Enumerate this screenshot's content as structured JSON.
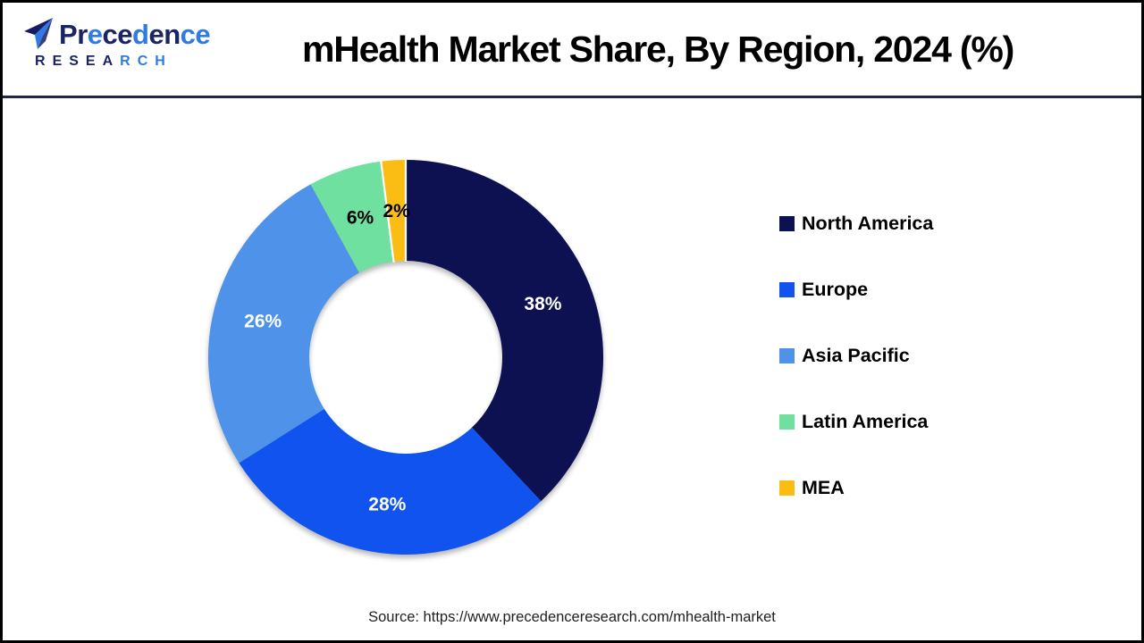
{
  "header": {
    "logo": {
      "name": "Precedence",
      "name_letter_colors": [
        "#1B2464",
        "#1B2464",
        "#2F7BE2",
        "#1B2464",
        "#1B2464",
        "#2F7BE2",
        "#1B2464",
        "#1B2464",
        "#2F7BE2",
        "#2F7BE2"
      ],
      "subtitle": "RESEARCH",
      "subtitle_letter_colors": [
        "#1B2464",
        "#1B2464",
        "#1B2464",
        "#1B2464",
        "#1B2464",
        "#2F7BE2",
        "#2F7BE2",
        "#2F7BE2"
      ],
      "plane_icon_colors": {
        "dark": "#151C63",
        "light": "#2E7BE8"
      }
    },
    "title": "mHealth Market Share, By Region, 2024 (%)"
  },
  "chart_data": {
    "type": "pie",
    "subtype": "donut",
    "title": "mHealth Market Share, By Region, 2024 (%)",
    "start_angle_deg": 0,
    "direction": "clockwise",
    "inner_radius_ratio": 0.49,
    "legend_position": "right",
    "data_label_format": "{value}%",
    "categories": [
      "North America",
      "Europe",
      "Asia Pacific",
      "Latin America",
      "MEA"
    ],
    "values": [
      38,
      28,
      26,
      6,
      2
    ],
    "segments": [
      {
        "label": "North America",
        "value": 38,
        "color": "#0D1152",
        "label_color": "#FFFFFF"
      },
      {
        "label": "Europe",
        "value": 28,
        "color": "#1153EE",
        "label_color": "#FFFFFF"
      },
      {
        "label": "Asia Pacific",
        "value": 26,
        "color": "#4E92EA",
        "label_color": "#FFFFFF"
      },
      {
        "label": "Latin America",
        "value": 6,
        "color": "#6FE09F",
        "label_color": "#000000"
      },
      {
        "label": "MEA",
        "value": 2,
        "color": "#FBBD14",
        "label_color": "#000000",
        "white_edges": true
      }
    ]
  },
  "footer": {
    "source_text": "Source: https://www.precedenceresearch.com/mhealth-market"
  },
  "frame": {
    "border_color": "#000000",
    "divider_color": "#23254E",
    "background": "#FFFFFF"
  }
}
